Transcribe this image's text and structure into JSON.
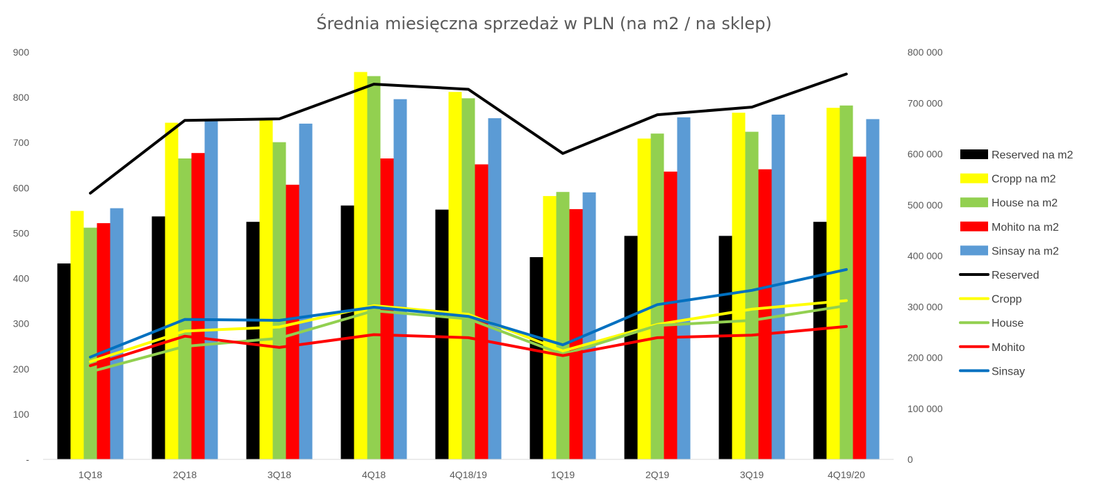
{
  "chart_data": {
    "type": "bar+line",
    "title": "Średnia miesięczna sprzedaż w PLN (na m2 / na sklep)",
    "categories": [
      "1Q18",
      "2Q18",
      "3Q18",
      "4Q18",
      "4Q18/19",
      "1Q19",
      "2Q19",
      "3Q19",
      "4Q19/20"
    ],
    "y_left": {
      "ticks": [
        "-",
        "100",
        "200",
        "300",
        "400",
        "500",
        "600",
        "700",
        "800",
        "900"
      ],
      "ylim": [
        0,
        900
      ]
    },
    "y_right": {
      "ticks": [
        "0",
        "100 000",
        "200 000",
        "300 000",
        "400 000",
        "500 000",
        "600 000",
        "700 000",
        "800 000"
      ],
      "ylim": [
        0,
        800000
      ]
    },
    "bar_series": [
      {
        "name": "Reserved na m2",
        "color": "#000000",
        "values": [
          433,
          537,
          525,
          561,
          552,
          447,
          494,
          494,
          525
        ]
      },
      {
        "name": "Cropp na m2",
        "color": "#FFFF00",
        "values": [
          549,
          744,
          750,
          856,
          812,
          582,
          709,
          766,
          777
        ]
      },
      {
        "name": "House  na m2",
        "color": "#92D050",
        "values": [
          512,
          665,
          701,
          847,
          798,
          591,
          720,
          724,
          782
        ]
      },
      {
        "name": "Mohito na m2",
        "color": "#FF0000",
        "values": [
          522,
          677,
          607,
          665,
          652,
          553,
          636,
          641,
          669
        ]
      },
      {
        "name": "Sinsay na m2",
        "color": "#5B9BD5",
        "values": [
          555,
          748,
          742,
          796,
          754,
          590,
          756,
          762,
          752
        ]
      }
    ],
    "line_series": [
      {
        "name": "Reserved",
        "color": "#000000",
        "values": [
          523000,
          666000,
          669000,
          737000,
          727000,
          601000,
          677000,
          692000,
          757000
        ]
      },
      {
        "name": "Cropp",
        "color": "#FFFF00",
        "values": [
          192000,
          252000,
          260000,
          302000,
          285000,
          213000,
          265000,
          295000,
          312000
        ]
      },
      {
        "name": "House",
        "color": "#92D050",
        "values": [
          172000,
          222000,
          238000,
          292000,
          276000,
          206000,
          263000,
          273000,
          302000
        ]
      },
      {
        "name": "Mohito",
        "color": "#FF0000",
        "values": [
          184000,
          242000,
          220000,
          245000,
          239000,
          204000,
          239000,
          244000,
          261000
        ]
      },
      {
        "name": "Sinsay",
        "color": "#0070C0",
        "values": [
          201000,
          275000,
          273000,
          299000,
          281000,
          225000,
          304000,
          332000,
          373000
        ]
      }
    ],
    "legend_position": "right",
    "grid": false
  }
}
